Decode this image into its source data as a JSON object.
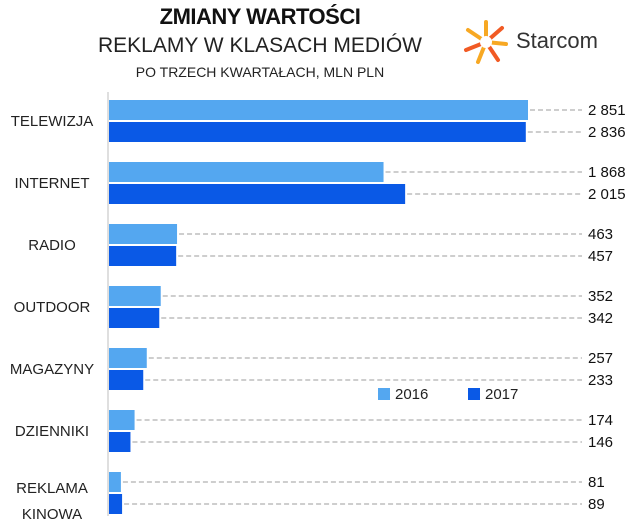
{
  "title": "ZMIANY WARTOŚCI",
  "subtitle": "REKLAMY W KLASACH MEDIÓW",
  "subtitle2": "PO TRZECH KWARTAŁACH, MLN PLN",
  "logo": {
    "text": "Starcom",
    "icon": "starburst-icon"
  },
  "colors": {
    "s2016": "#54a7f0",
    "s2017": "#0a59e6",
    "axis": "#bfbfbf",
    "leader": "#b0b0b0"
  },
  "chart_data": {
    "type": "bar",
    "orientation": "horizontal",
    "categories": [
      "TELEWIZJA",
      "INTERNET",
      "RADIO",
      "OUTDOOR",
      "MAGAZYNY",
      "DZIENNIKI",
      "REKLAMA KINOWA"
    ],
    "series": [
      {
        "name": "2016",
        "values": [
          2851,
          1868,
          463,
          352,
          257,
          174,
          81
        ],
        "labels": [
          "2 851",
          "1 868",
          "463",
          "352",
          "257",
          "174",
          "81"
        ]
      },
      {
        "name": "2017",
        "values": [
          2836,
          2015,
          457,
          342,
          233,
          146,
          89
        ],
        "labels": [
          "2 836",
          "2 015",
          "457",
          "342",
          "233",
          "146",
          "89"
        ]
      }
    ],
    "xlim": [
      0,
      2851
    ],
    "legend": "bottom-right",
    "grid": false
  }
}
